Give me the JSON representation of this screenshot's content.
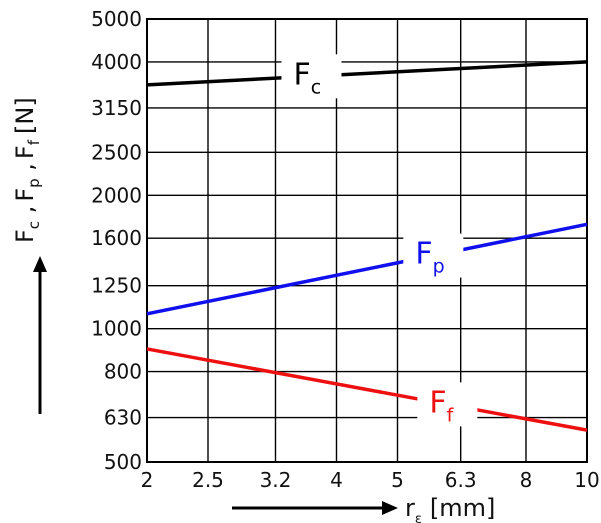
{
  "chart_data": {
    "type": "line",
    "x_scale": "log",
    "y_scale": "log",
    "grid": true,
    "xlabel": "r",
    "xlabel_subscript": "ε",
    "xlabel_unit": "[mm]",
    "ylabel": "F",
    "ylabel_parts": [
      {
        "main": "F",
        "sub": "c"
      },
      {
        "main": "F",
        "sub": "p"
      },
      {
        "main": "F",
        "sub": "f"
      }
    ],
    "ylabel_separator": ",",
    "ylabel_unit": "[N]",
    "xlim": [
      2,
      10
    ],
    "ylim": [
      500,
      5000
    ],
    "x_ticks": [
      2,
      2.5,
      3.2,
      4,
      5,
      6.3,
      8,
      10
    ],
    "x_tick_labels": [
      "2",
      "2.5",
      "3.2",
      "4",
      "5",
      "6.3",
      "8",
      "10"
    ],
    "y_ticks": [
      500,
      630,
      800,
      1000,
      1250,
      1600,
      2000,
      2500,
      3150,
      4000,
      5000
    ],
    "y_tick_labels": [
      "500",
      "630",
      "800",
      "1000",
      "1250",
      "1600",
      "2000",
      "2500",
      "3150",
      "4000",
      "5000"
    ],
    "series": [
      {
        "name": "F",
        "sub": "c",
        "color": "#000000",
        "x": [
          2,
          10
        ],
        "y": [
          3550,
          4000
        ]
      },
      {
        "name": "F",
        "sub": "p",
        "color": "#1010ee",
        "x": [
          2,
          10
        ],
        "y": [
          1080,
          1720
        ]
      },
      {
        "name": "F",
        "sub": "f",
        "color": "#ee1010",
        "x": [
          2,
          10
        ],
        "y": [
          900,
          590
        ]
      }
    ]
  }
}
